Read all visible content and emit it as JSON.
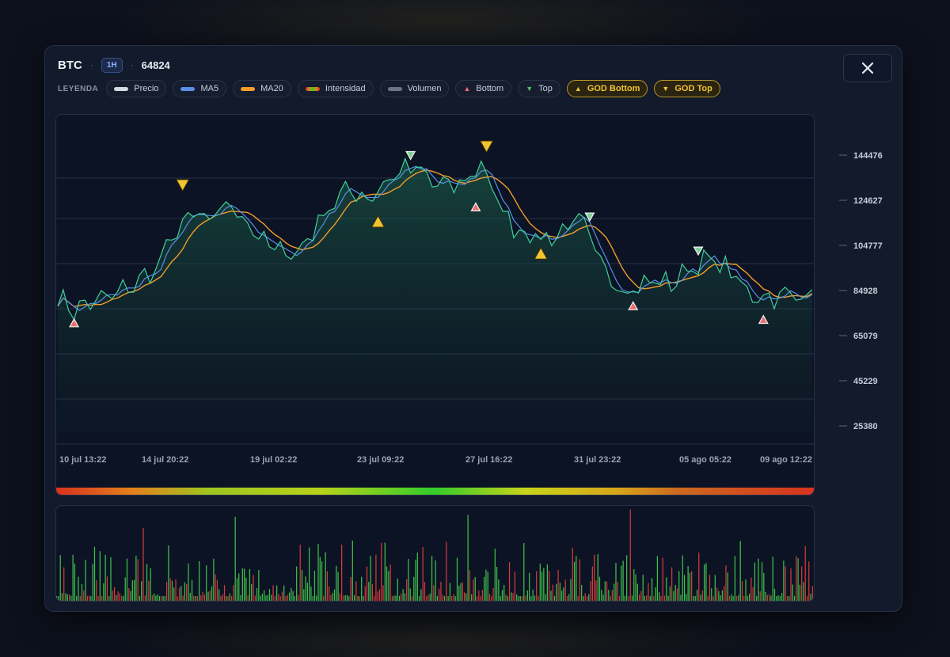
{
  "header": {
    "symbol": "BTC",
    "separator": "·",
    "timeframe": "1H",
    "last_price": "64824"
  },
  "legend": {
    "title": "LEYENDA",
    "items": [
      {
        "label": "Precio",
        "icon": "line-swatch",
        "color": "#d5d9e2"
      },
      {
        "label": "MA5",
        "icon": "line-swatch",
        "color": "#5b8fe8"
      },
      {
        "label": "MA20",
        "icon": "line-swatch",
        "color": "#f39c2a"
      },
      {
        "label": "Intensidad",
        "icon": "gradient-swatch",
        "color": "#e04a2a"
      },
      {
        "label": "Volumen",
        "icon": "line-swatch",
        "color": "#6c7588"
      },
      {
        "label": "Bottom",
        "icon": "triangle-up-icon",
        "color": "#ef6b6b"
      },
      {
        "label": "Top",
        "icon": "triangle-down-icon",
        "color": "#4fc36a"
      },
      {
        "label": "GOD Bottom",
        "icon": "triangle-up-icon",
        "color": "#f1c433"
      },
      {
        "label": "GOD Top",
        "icon": "triangle-down-icon",
        "color": "#f1c433"
      }
    ]
  },
  "colors": {
    "price_line": "#3fd19a",
    "ma5": "#5b8fe8",
    "ma20": "#f39c2a",
    "bottom": "#ef6b6b",
    "top": "#7fcf96",
    "god": "#f1c433",
    "vol_up": "#3fbf4a",
    "vol_down": "#d23a3a"
  },
  "chart_data": {
    "type": "line",
    "y_ticks": [
      "144476",
      "124627",
      "104777",
      "84928",
      "65079",
      "45229",
      "25380"
    ],
    "x_ticks": [
      "10 jul 13:22",
      "14 jul 20:22",
      "19 jul 02:22",
      "23 jul 09:22",
      "27 jul 16:22",
      "31 jul 23:22",
      "05 ago 05:22",
      "09 ago 12:22"
    ],
    "ylim": [
      20000,
      160000
    ],
    "price_anchors": [
      [
        0,
        62000
      ],
      [
        3,
        57000
      ],
      [
        6,
        60000
      ],
      [
        10,
        63000
      ],
      [
        14,
        68000
      ],
      [
        18,
        75000
      ],
      [
        22,
        92000
      ],
      [
        25,
        99000
      ],
      [
        28,
        95000
      ],
      [
        31,
        104000
      ],
      [
        35,
        96000
      ],
      [
        38,
        86000
      ],
      [
        42,
        82000
      ],
      [
        45,
        84000
      ],
      [
        48,
        96000
      ],
      [
        51,
        105000
      ],
      [
        54,
        110000
      ],
      [
        57,
        106000
      ],
      [
        60,
        112000
      ],
      [
        63,
        118000
      ],
      [
        66,
        119000
      ],
      [
        69,
        113000
      ],
      [
        72,
        111000
      ],
      [
        75,
        113000
      ],
      [
        78,
        122000
      ],
      [
        81,
        104000
      ],
      [
        84,
        94000
      ],
      [
        87,
        90000
      ],
      [
        90,
        88000
      ],
      [
        93,
        92000
      ],
      [
        96,
        97000
      ],
      [
        100,
        78000
      ],
      [
        104,
        66000
      ],
      [
        107,
        67000
      ],
      [
        110,
        70000
      ],
      [
        113,
        68000
      ],
      [
        116,
        75000
      ],
      [
        120,
        79000
      ],
      [
        124,
        74000
      ],
      [
        127,
        64000
      ],
      [
        131,
        63000
      ],
      [
        134,
        63000
      ],
      [
        139,
        64500
      ]
    ],
    "markers": [
      {
        "type": "bottom",
        "i": 3,
        "value": 51000
      },
      {
        "type": "god_top",
        "i": 23,
        "value": 112000
      },
      {
        "type": "god_bottom",
        "i": 59,
        "value": 95500
      },
      {
        "type": "top",
        "i": 65,
        "value": 125000
      },
      {
        "type": "bottom",
        "i": 77,
        "value": 102000
      },
      {
        "type": "god_top",
        "i": 79,
        "value": 129000
      },
      {
        "type": "god_bottom",
        "i": 89,
        "value": 81500
      },
      {
        "type": "top",
        "i": 98,
        "value": 98000
      },
      {
        "type": "bottom",
        "i": 106,
        "value": 58500
      },
      {
        "type": "top",
        "i": 118,
        "value": 83000
      },
      {
        "type": "bottom",
        "i": 130,
        "value": 52500
      }
    ],
    "intensity_stops": [
      {
        "at": 0.0,
        "color": "#d8321e"
      },
      {
        "at": 0.1,
        "color": "#e4801c"
      },
      {
        "at": 0.2,
        "color": "#9ec61f"
      },
      {
        "at": 0.35,
        "color": "#b7d21a"
      },
      {
        "at": 0.5,
        "color": "#33cc2a"
      },
      {
        "at": 0.62,
        "color": "#c9d41a"
      },
      {
        "at": 0.74,
        "color": "#d8a61a"
      },
      {
        "at": 0.82,
        "color": "#cc6a1e"
      },
      {
        "at": 1.0,
        "color": "#d8321e"
      }
    ],
    "volume_spikes": [
      [
        33,
        0.9
      ],
      [
        76,
        0.92
      ],
      [
        106,
        0.98
      ],
      [
        16,
        0.78
      ],
      [
        45,
        0.6
      ],
      [
        60,
        0.62
      ],
      [
        100,
        0.5
      ]
    ]
  }
}
